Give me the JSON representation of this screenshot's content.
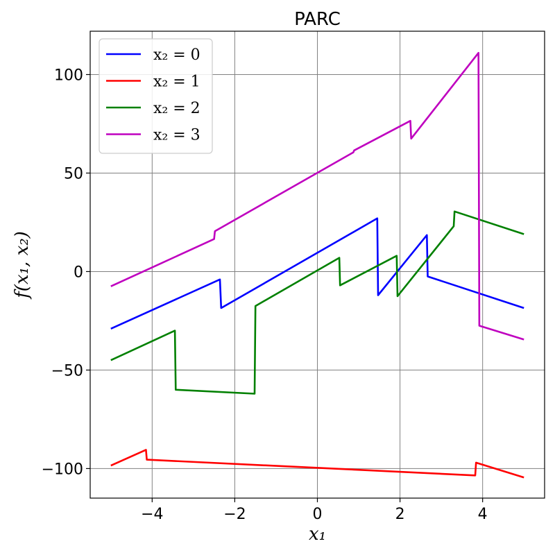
{
  "chart_data": {
    "type": "line",
    "title": "PARC",
    "xlabel": "x₁",
    "ylabel": "f(x₁, x₂)",
    "xlim": [
      -5.5,
      5.5
    ],
    "ylim": [
      -115,
      122
    ],
    "xticks": [
      -4,
      -2,
      0,
      2,
      4
    ],
    "yticks": [
      -100,
      -50,
      0,
      50,
      100
    ],
    "xtick_labels": [
      "−4",
      "−2",
      "0",
      "2",
      "4"
    ],
    "ytick_labels": [
      "−100",
      "−50",
      "0",
      "50",
      "100"
    ],
    "grid": true,
    "legend_position": "top-left",
    "series": [
      {
        "name": "x₂ = 0",
        "color": "#0000ff",
        "points": [
          [
            -5,
            -29
          ],
          [
            -2.36,
            -4
          ],
          [
            -2.33,
            -18.5
          ],
          [
            1.45,
            27
          ],
          [
            1.47,
            -12
          ],
          [
            2.65,
            18.5
          ],
          [
            2.67,
            -2.5
          ],
          [
            5,
            -18.5
          ]
        ]
      },
      {
        "name": "x₂ = 1",
        "color": "#ff0000",
        "points": [
          [
            -5,
            -98.5
          ],
          [
            -4.15,
            -90.5
          ],
          [
            -4.13,
            -95.5
          ],
          [
            3.82,
            -103.5
          ],
          [
            3.84,
            -97
          ],
          [
            5,
            -104.5
          ]
        ]
      },
      {
        "name": "x₂ = 2",
        "color": "#008000",
        "points": [
          [
            -5,
            -45
          ],
          [
            -3.45,
            -30
          ],
          [
            -3.43,
            -60
          ],
          [
            -1.52,
            -62
          ],
          [
            -1.5,
            -17.5
          ],
          [
            0.53,
            7
          ],
          [
            0.55,
            -7
          ],
          [
            1.92,
            8
          ],
          [
            1.94,
            -12.5
          ],
          [
            3.3,
            23
          ],
          [
            3.32,
            30.5
          ],
          [
            5,
            19
          ]
        ]
      },
      {
        "name": "x₂ = 3",
        "color": "#bf00bf",
        "points": [
          [
            -5,
            -7.5
          ],
          [
            -2.5,
            16.5
          ],
          [
            -2.48,
            20.5
          ],
          [
            0.87,
            60.5
          ],
          [
            0.89,
            61.5
          ],
          [
            2.25,
            76.5
          ],
          [
            2.27,
            67.5
          ],
          [
            3.9,
            111
          ],
          [
            3.92,
            -27.5
          ],
          [
            5,
            -34.5
          ]
        ]
      }
    ]
  }
}
